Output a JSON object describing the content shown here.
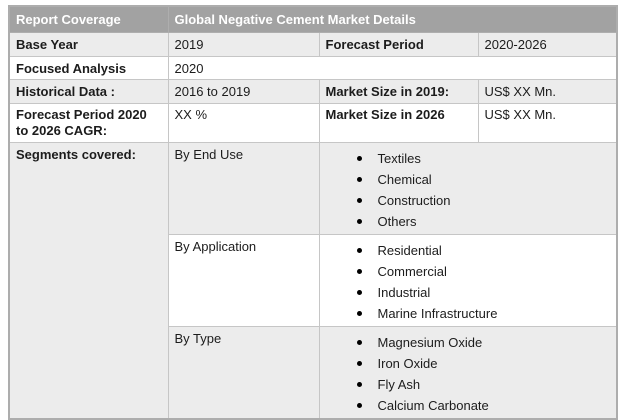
{
  "header": {
    "report_coverage": "Report Coverage",
    "details_title": "Global Negative Cement Market Details"
  },
  "rows": {
    "base_year": {
      "label": "Base Year",
      "value": "2019"
    },
    "forecast_period": {
      "label": "Forecast Period",
      "value": "2020-2026"
    },
    "focused_analysis": {
      "label": "Focused Analysis",
      "value": "2020"
    },
    "historical_data": {
      "label": "Historical Data :",
      "value": "2016 to 2019"
    },
    "market_size_2019": {
      "label": "Market Size in 2019:",
      "value": "US$ XX Mn."
    },
    "cagr": {
      "label": "Forecast Period 2020 to 2026 CAGR:",
      "value": "XX %"
    },
    "market_size_2026": {
      "label": "Market Size in 2026",
      "value": "US$ XX Mn."
    }
  },
  "segments": {
    "label": "Segments covered:",
    "groups": [
      {
        "name": "By End Use",
        "items": [
          "Textiles",
          "Chemical",
          "Construction",
          "Others"
        ]
      },
      {
        "name": "By Application",
        "items": [
          "Residential",
          "Commercial",
          "Industrial",
          "Marine Infrastructure"
        ]
      },
      {
        "name": "By Type",
        "items": [
          "Magnesium Oxide",
          "Iron Oxide",
          "Fly Ash",
          "Calcium Carbonate"
        ]
      }
    ]
  },
  "colors": {
    "header_bg": "#a2a2a2",
    "header_text": "#ffffff",
    "alt_row_bg": "#ececec",
    "inner_border": "#c6c6c6",
    "outer_border": "#adadad",
    "text": "#1c1c1c"
  }
}
